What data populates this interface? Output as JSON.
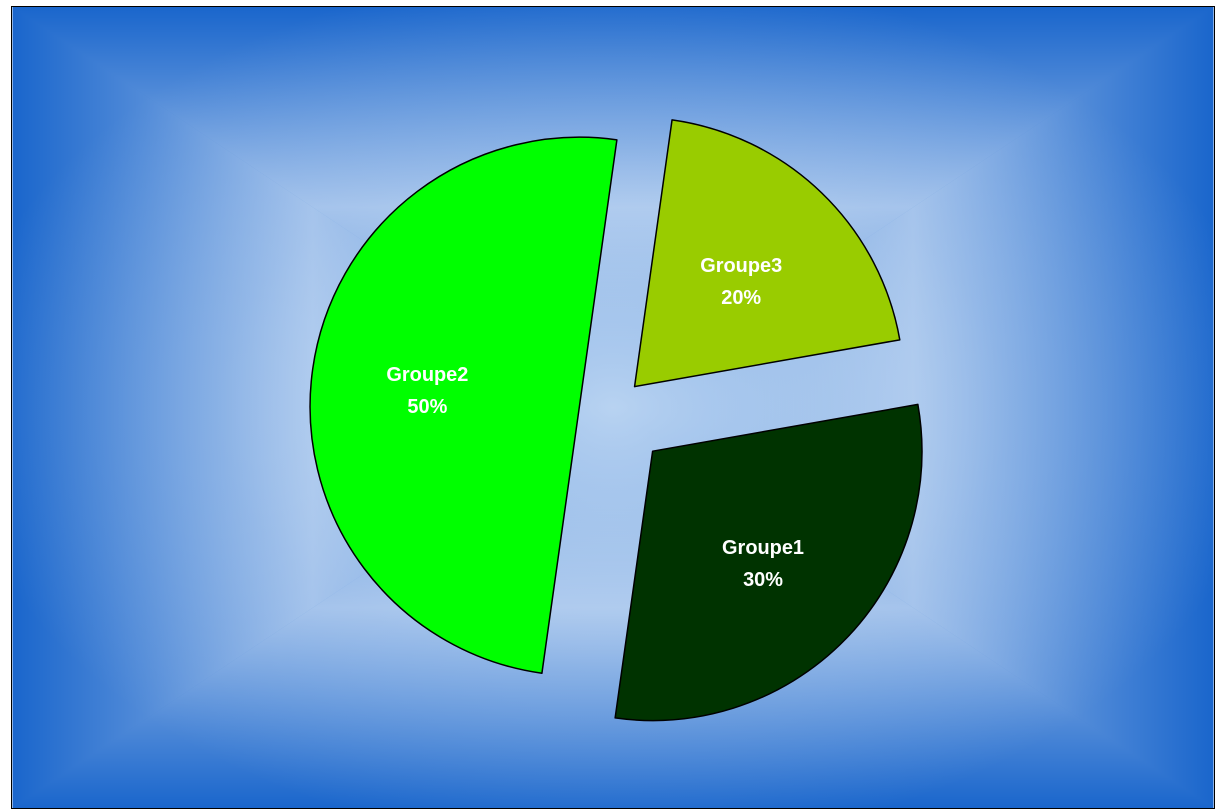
{
  "chart_data": {
    "type": "pie",
    "exploded": true,
    "background_style": "blue radial gradient",
    "slices": [
      {
        "label": "Groupe1",
        "value": 30,
        "percent_label": "30%",
        "color": "#003300"
      },
      {
        "label": "Groupe2",
        "value": 50,
        "percent_label": "50%",
        "color": "#00ff00"
      },
      {
        "label": "Groupe3",
        "value": 20,
        "percent_label": "20%",
        "color": "#99cc00"
      }
    ],
    "colors": {
      "background_center": "#cfe2f6",
      "background_edge": "#1a66cc",
      "slice_outline": "#000000",
      "label_text": "#ffffff"
    }
  }
}
